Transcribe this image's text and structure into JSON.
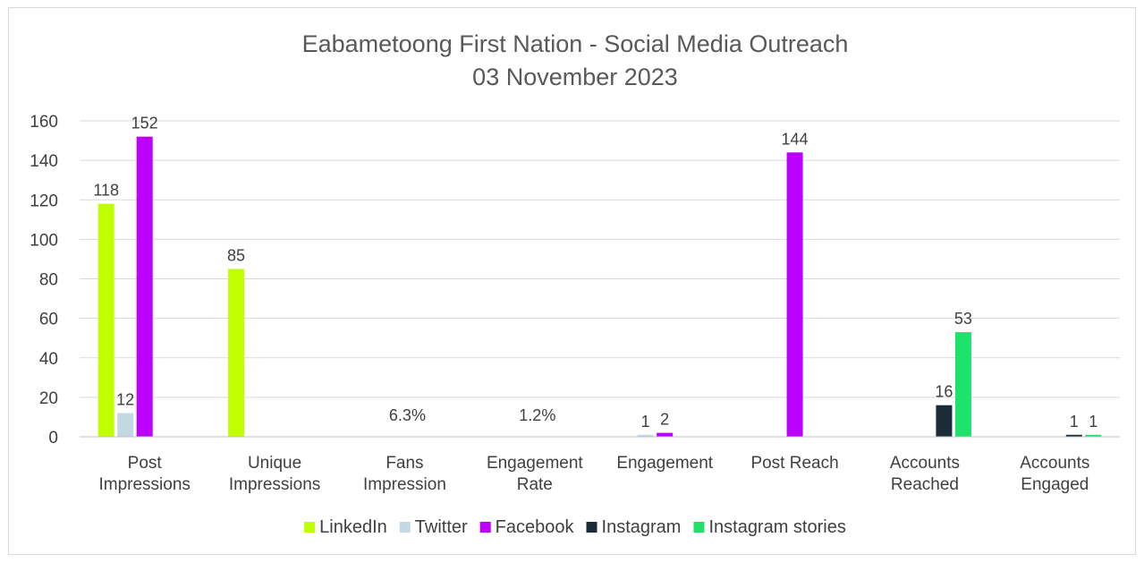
{
  "chart_data": {
    "type": "bar",
    "title": "Eabametoong First Nation - Social Media Outreach",
    "subtitle": "03 November 2023",
    "categories": [
      [
        "Post",
        "Impressions"
      ],
      [
        "Unique",
        "Impressions"
      ],
      [
        "Fans",
        "Impression"
      ],
      [
        "Engagement",
        "Rate"
      ],
      [
        "Engagement"
      ],
      [
        "Post Reach"
      ],
      [
        "Accounts",
        "Reached"
      ],
      [
        "Accounts",
        "Engaged"
      ]
    ],
    "series": [
      {
        "name": "LinkedIn",
        "color": "#bfff00",
        "values": [
          118,
          85,
          null,
          null,
          null,
          null,
          null,
          null
        ],
        "labels": [
          "118",
          "85",
          null,
          null,
          null,
          null,
          null,
          null
        ]
      },
      {
        "name": "Twitter",
        "color": "#c2d9e3",
        "values": [
          12,
          null,
          null,
          null,
          1,
          null,
          null,
          null
        ],
        "labels": [
          "12",
          null,
          null,
          null,
          "1",
          null,
          null,
          null
        ]
      },
      {
        "name": "Facebook",
        "color": "#bb00ff",
        "values": [
          152,
          null,
          null,
          null,
          2,
          144,
          null,
          null
        ],
        "labels": [
          "152",
          null,
          null,
          null,
          "2",
          "144",
          null,
          null
        ]
      },
      {
        "name": "Instagram",
        "color": "#1b2b38",
        "values": [
          null,
          null,
          null,
          null,
          null,
          null,
          16,
          1
        ],
        "labels": [
          null,
          null,
          null,
          null,
          null,
          null,
          "16",
          "1"
        ]
      },
      {
        "name": "Instagram stories",
        "color": "#1de36b",
        "values": [
          null,
          null,
          null,
          null,
          null,
          null,
          53,
          1
        ],
        "labels": [
          null,
          null,
          null,
          null,
          null,
          null,
          "53",
          "1"
        ]
      }
    ],
    "extra_labels": [
      {
        "category_index": 2,
        "text": "6.3%"
      },
      {
        "category_index": 3,
        "text": "1.2%"
      }
    ],
    "ylim": [
      0,
      160
    ],
    "yticks": [
      0,
      20,
      40,
      60,
      80,
      100,
      120,
      140,
      160
    ],
    "grid": true,
    "legend_position": "bottom"
  }
}
